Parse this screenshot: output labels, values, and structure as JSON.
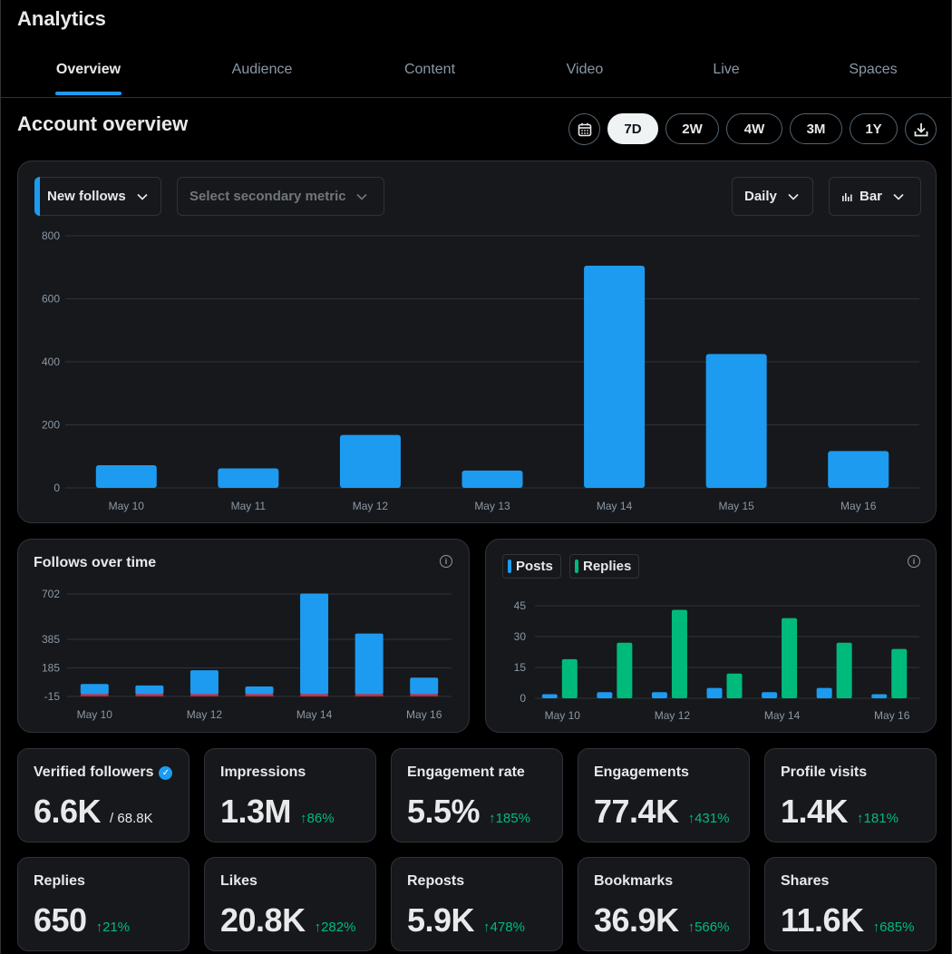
{
  "app": {
    "title": "Analytics"
  },
  "tabs": [
    {
      "label": "Overview",
      "active": true
    },
    {
      "label": "Audience",
      "active": false
    },
    {
      "label": "Content",
      "active": false
    },
    {
      "label": "Video",
      "active": false
    },
    {
      "label": "Live",
      "active": false
    },
    {
      "label": "Spaces",
      "active": false
    }
  ],
  "section": {
    "title": "Account overview"
  },
  "ranges": [
    {
      "label": "7D",
      "active": true
    },
    {
      "label": "2W",
      "active": false
    },
    {
      "label": "4W",
      "active": false
    },
    {
      "label": "3M",
      "active": false
    },
    {
      "label": "1Y",
      "active": false
    }
  ],
  "controls": {
    "calendar_icon": "calendar-icon",
    "download_icon": "download-icon",
    "primary_metric": "New follows",
    "secondary_metric_placeholder": "Select secondary metric",
    "granularity": "Daily",
    "chart_style": "Bar"
  },
  "colors": {
    "accent": "#1d9bf0",
    "green": "#00ba7c",
    "red": "#f4212e",
    "card_bg": "#16181c",
    "border": "#2f3336"
  },
  "chart_data": [
    {
      "type": "bar",
      "categories": [
        "May 10",
        "May 11",
        "May 12",
        "May 13",
        "May 14",
        "May 15",
        "May 16"
      ],
      "values": [
        72,
        62,
        168,
        55,
        705,
        425,
        117
      ],
      "ylim": [
        0,
        800
      ],
      "yticks": [
        "0",
        "200",
        "400",
        "600",
        "800"
      ],
      "grid": true,
      "color": "#1d9bf0"
    },
    {
      "type": "bar",
      "title": "Follows over time",
      "categories": [
        "May 10",
        "May 11",
        "May 12",
        "May 13",
        "May 14",
        "May 15",
        "May 16"
      ],
      "xtick_labels": [
        "May 10",
        "May 12",
        "May 14",
        "May 16"
      ],
      "series": [
        {
          "values": [
            72,
            62,
            168,
            55,
            705,
            425,
            117
          ],
          "color": "#1d9bf0"
        },
        {
          "values": [
            -8,
            -6,
            -6,
            -5,
            -14,
            -13,
            -8
          ],
          "color": "#f4212e"
        }
      ],
      "ylim": [
        -15,
        702
      ],
      "yticks": [
        "-15",
        "185",
        "385",
        "702"
      ],
      "ytick_values": [
        -15,
        185,
        385,
        702
      ],
      "grid": true
    },
    {
      "type": "bar",
      "categories": [
        "May 10",
        "May 11",
        "May 12",
        "May 13",
        "May 14",
        "May 15",
        "May 16"
      ],
      "xtick_labels": [
        "May 10",
        "May 12",
        "May 14",
        "May 16"
      ],
      "series": [
        {
          "name": "Posts",
          "values": [
            2,
            3,
            3,
            5,
            3,
            5,
            2
          ],
          "color": "#1d9bf0"
        },
        {
          "name": "Replies",
          "values": [
            19,
            27,
            43,
            12,
            39,
            27,
            24
          ],
          "color": "#00ba7c"
        }
      ],
      "ylim": [
        0,
        45
      ],
      "yticks": [
        "0",
        "15",
        "30",
        "45"
      ],
      "grid": true
    }
  ],
  "metrics": [
    {
      "label": "Verified followers",
      "value": "6.6K",
      "sub": "/ 68.8K",
      "verified_icon": "verified-badge-icon"
    },
    {
      "label": "Impressions",
      "value": "1.3M",
      "delta": "86%"
    },
    {
      "label": "Engagement rate",
      "value": "5.5%",
      "delta": "185%"
    },
    {
      "label": "Engagements",
      "value": "77.4K",
      "delta": "431%"
    },
    {
      "label": "Profile visits",
      "value": "1.4K",
      "delta": "181%"
    },
    {
      "label": "Replies",
      "value": "650",
      "delta": "21%"
    },
    {
      "label": "Likes",
      "value": "20.8K",
      "delta": "282%"
    },
    {
      "label": "Reposts",
      "value": "5.9K",
      "delta": "478%"
    },
    {
      "label": "Bookmarks",
      "value": "36.9K",
      "delta": "566%"
    },
    {
      "label": "Shares",
      "value": "11.6K",
      "delta": "685%"
    }
  ]
}
